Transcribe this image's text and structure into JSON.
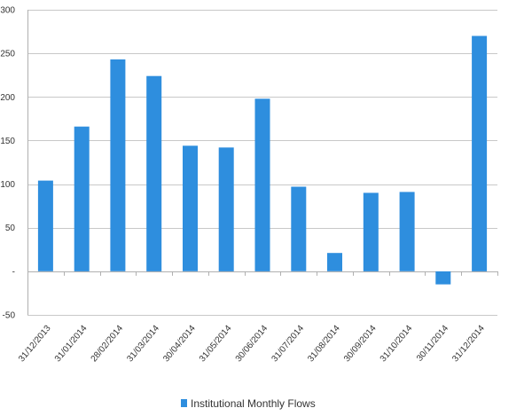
{
  "chart_data": {
    "type": "bar",
    "title": "",
    "xlabel": "",
    "ylabel": "",
    "categories": [
      "31/12/2013",
      "31/01/2014",
      "28/02/2014",
      "31/03/2014",
      "30/04/2014",
      "31/05/2014",
      "30/06/2014",
      "31/07/2014",
      "31/08/2014",
      "30/09/2014",
      "31/10/2014",
      "30/11/2014",
      "31/12/2014"
    ],
    "series": [
      {
        "name": "Institutional Monthly Flows",
        "color": "#2e8ede",
        "values": [
          104,
          166,
          243,
          224,
          144,
          142,
          198,
          97,
          21,
          90,
          91,
          -15,
          270
        ]
      }
    ],
    "ylim": [
      -50,
      300
    ],
    "yticks": [
      -50,
      0,
      50,
      100,
      150,
      200,
      250,
      300
    ],
    "ytick_labels": [
      "-50",
      "-",
      "50",
      "100",
      "150",
      "200",
      "250",
      "300"
    ],
    "grid": true,
    "legend_position": "bottom"
  }
}
